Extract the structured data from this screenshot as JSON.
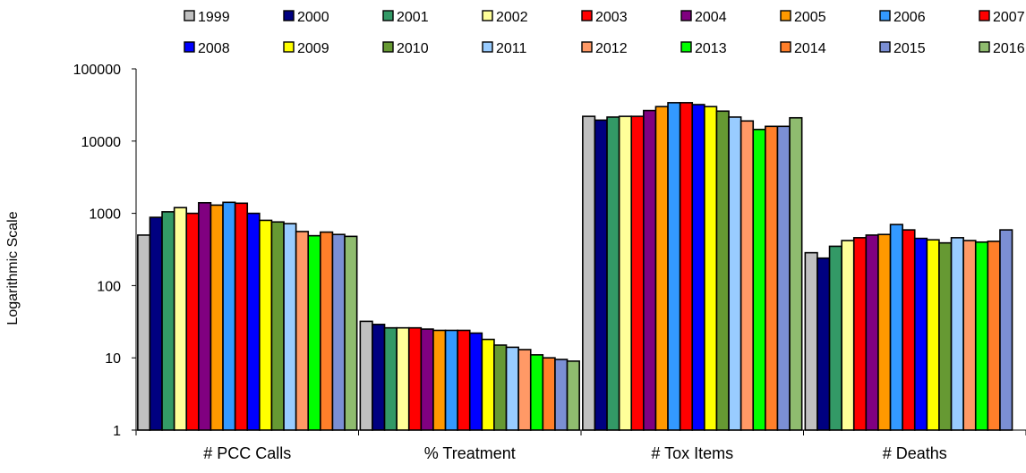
{
  "chart_data": {
    "type": "bar",
    "ylabel": "Logarithmic Scale",
    "yscale": "log",
    "ylim": [
      1,
      100000
    ],
    "yticks": [
      "1",
      "10",
      "100",
      "1000",
      "10000",
      "100000"
    ],
    "grid": false,
    "legend_position": "top",
    "categories": [
      "# PCC Calls",
      "% Treatment",
      "# Tox Items",
      "# Deaths"
    ],
    "series": [
      {
        "name": "1999",
        "color": "#c0c0c0",
        "values": [
          500,
          32,
          22000,
          285
        ]
      },
      {
        "name": "2000",
        "color": "#000080",
        "values": [
          880,
          29,
          19500,
          240
        ]
      },
      {
        "name": "2001",
        "color": "#339966",
        "values": [
          1050,
          26,
          21500,
          350
        ]
      },
      {
        "name": "2002",
        "color": "#ffff99",
        "values": [
          1200,
          26,
          22000,
          420
        ]
      },
      {
        "name": "2003",
        "color": "#ff0000",
        "values": [
          1000,
          26,
          22000,
          460
        ]
      },
      {
        "name": "2004",
        "color": "#800080",
        "values": [
          1400,
          25,
          26500,
          500
        ]
      },
      {
        "name": "2005",
        "color": "#ff9900",
        "values": [
          1300,
          24,
          30000,
          510
        ]
      },
      {
        "name": "2006",
        "color": "#3399ff",
        "values": [
          1420,
          24,
          34000,
          700
        ]
      },
      {
        "name": "2007",
        "color": "#ff0000",
        "values": [
          1380,
          24,
          34000,
          590
        ]
      },
      {
        "name": "2008",
        "color": "#0000ff",
        "values": [
          1000,
          22,
          32000,
          450
        ]
      },
      {
        "name": "2009",
        "color": "#ffff00",
        "values": [
          800,
          18,
          30000,
          430
        ]
      },
      {
        "name": "2010",
        "color": "#669933",
        "values": [
          760,
          15,
          26000,
          390
        ]
      },
      {
        "name": "2011",
        "color": "#99ccff",
        "values": [
          720,
          14,
          21500,
          460
        ]
      },
      {
        "name": "2012",
        "color": "#ff9966",
        "values": [
          560,
          13,
          19000,
          420
        ]
      },
      {
        "name": "2013",
        "color": "#00ff00",
        "values": [
          490,
          11,
          14500,
          400
        ]
      },
      {
        "name": "2014",
        "color": "#ff7f2a",
        "values": [
          550,
          10,
          16000,
          410
        ]
      },
      {
        "name": "2015",
        "color": "#7b8fd4",
        "values": [
          510,
          9.5,
          16000,
          590
        ]
      },
      {
        "name": "2016",
        "color": "#8fbc6f",
        "values": [
          480,
          9,
          21000,
          0
        ]
      }
    ]
  }
}
